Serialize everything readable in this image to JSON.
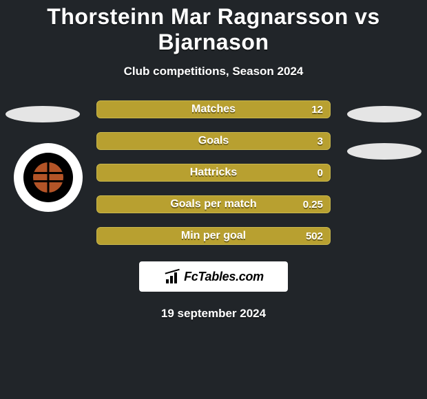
{
  "title": "Thorsteinn Mar Ragnarsson vs Bjarnason",
  "subtitle": "Club competitions, Season 2024",
  "date": "19 september 2024",
  "branding": {
    "text": "FcTables.com"
  },
  "colors": {
    "background": "#212529",
    "bar_fill": "#b8a030",
    "bar_border": "#c9b84d",
    "text": "#ffffff",
    "badge_bg": "#ffffff",
    "badge_inner": "#000000",
    "ball": "#b35427",
    "ellipse": "#e5e5e5"
  },
  "stats": [
    {
      "label": "Matches",
      "value": "12"
    },
    {
      "label": "Goals",
      "value": "3"
    },
    {
      "label": "Hattricks",
      "value": "0"
    },
    {
      "label": "Goals per match",
      "value": "0.25"
    },
    {
      "label": "Min per goal",
      "value": "502"
    }
  ]
}
